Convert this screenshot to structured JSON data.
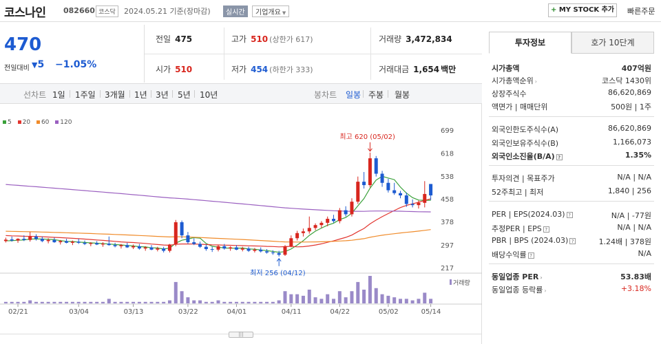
{
  "header": {
    "name": "코스나인",
    "code": "082660",
    "market": "코스닥",
    "date": "2024.05.21 기준(장마감)",
    "live": "실시간",
    "overview": "기업개요",
    "mystock": "MY STOCK 추가",
    "quick_order": "빠른주문"
  },
  "price": {
    "current": "470",
    "diff_label": "전일대비",
    "diff": "5",
    "rate": "−1.05%"
  },
  "quote": {
    "prev_label": "전일",
    "prev": "475",
    "high_label": "고가",
    "high": "510",
    "upper_limit": "(상한가 617)",
    "volume_label": "거래량",
    "volume": "3,472,834",
    "open_label": "시가",
    "open": "510",
    "low_label": "저가",
    "low": "454",
    "lower_limit": "(하한가 333)",
    "amount_label": "거래대금",
    "amount": "1,654",
    "amount_unit": "백만"
  },
  "periods": {
    "line_label": "선차트",
    "line_items": [
      "1일",
      "1주일",
      "3개월",
      "1년",
      "3년",
      "5년",
      "10년"
    ],
    "candle_label": "봉차트",
    "candle_items": [
      "일봉",
      "주봉",
      "월봉"
    ],
    "active_candle": "일봉"
  },
  "legend": [
    "5",
    "20",
    "60",
    "120"
  ],
  "legend_colors": [
    "#3aa13a",
    "#e2352f",
    "#f08b2a",
    "#9a5fc0"
  ],
  "up_color": "#d8261e",
  "down_color": "#1d5bd1",
  "volume_label": "거래량",
  "annotations": {
    "max_label": "최고 620 (05/02)",
    "min_label": "최저 256 (04/12)"
  },
  "chart_data": {
    "type": "candlestick",
    "y_ticks": [
      "699",
      "618",
      "538",
      "458",
      "378",
      "297",
      "217"
    ],
    "ylim": [
      217,
      699
    ],
    "x_ticks": [
      "02/21",
      "03/04",
      "03/13",
      "03/22",
      "04/01",
      "04/11",
      "04/22",
      "05/02",
      "05/14"
    ],
    "candles": [
      {
        "o": 310,
        "h": 322,
        "l": 305,
        "c": 315
      },
      {
        "o": 316,
        "h": 326,
        "l": 308,
        "c": 312
      },
      {
        "o": 312,
        "h": 320,
        "l": 304,
        "c": 318
      },
      {
        "o": 318,
        "h": 330,
        "l": 310,
        "c": 314
      },
      {
        "o": 314,
        "h": 342,
        "l": 308,
        "c": 326
      },
      {
        "o": 326,
        "h": 334,
        "l": 312,
        "c": 318
      },
      {
        "o": 318,
        "h": 326,
        "l": 306,
        "c": 310
      },
      {
        "o": 310,
        "h": 320,
        "l": 302,
        "c": 314
      },
      {
        "o": 314,
        "h": 322,
        "l": 304,
        "c": 306
      },
      {
        "o": 306,
        "h": 314,
        "l": 298,
        "c": 310
      },
      {
        "o": 310,
        "h": 318,
        "l": 302,
        "c": 304
      },
      {
        "o": 304,
        "h": 312,
        "l": 296,
        "c": 308
      },
      {
        "o": 308,
        "h": 318,
        "l": 300,
        "c": 304
      },
      {
        "o": 304,
        "h": 312,
        "l": 296,
        "c": 300
      },
      {
        "o": 300,
        "h": 306,
        "l": 292,
        "c": 303
      },
      {
        "o": 303,
        "h": 310,
        "l": 296,
        "c": 298
      },
      {
        "o": 298,
        "h": 306,
        "l": 290,
        "c": 301
      },
      {
        "o": 301,
        "h": 326,
        "l": 294,
        "c": 296
      },
      {
        "o": 296,
        "h": 304,
        "l": 288,
        "c": 292
      },
      {
        "o": 292,
        "h": 300,
        "l": 284,
        "c": 296
      },
      {
        "o": 296,
        "h": 304,
        "l": 286,
        "c": 288
      },
      {
        "o": 288,
        "h": 298,
        "l": 282,
        "c": 292
      },
      {
        "o": 292,
        "h": 300,
        "l": 280,
        "c": 284
      },
      {
        "o": 284,
        "h": 292,
        "l": 276,
        "c": 288
      },
      {
        "o": 288,
        "h": 296,
        "l": 278,
        "c": 280
      },
      {
        "o": 280,
        "h": 290,
        "l": 274,
        "c": 284
      },
      {
        "o": 284,
        "h": 290,
        "l": 270,
        "c": 276
      },
      {
        "o": 276,
        "h": 300,
        "l": 270,
        "c": 298
      },
      {
        "o": 298,
        "h": 384,
        "l": 292,
        "c": 376
      },
      {
        "o": 376,
        "h": 382,
        "l": 320,
        "c": 330
      },
      {
        "o": 330,
        "h": 342,
        "l": 300,
        "c": 306
      },
      {
        "o": 306,
        "h": 320,
        "l": 296,
        "c": 300
      },
      {
        "o": 300,
        "h": 308,
        "l": 286,
        "c": 290
      },
      {
        "o": 290,
        "h": 298,
        "l": 276,
        "c": 282
      },
      {
        "o": 282,
        "h": 290,
        "l": 272,
        "c": 280
      },
      {
        "o": 280,
        "h": 296,
        "l": 274,
        "c": 292
      },
      {
        "o": 292,
        "h": 300,
        "l": 280,
        "c": 284
      },
      {
        "o": 284,
        "h": 292,
        "l": 276,
        "c": 288
      },
      {
        "o": 288,
        "h": 296,
        "l": 278,
        "c": 280
      },
      {
        "o": 280,
        "h": 290,
        "l": 274,
        "c": 284
      },
      {
        "o": 284,
        "h": 290,
        "l": 272,
        "c": 276
      },
      {
        "o": 276,
        "h": 286,
        "l": 270,
        "c": 280
      },
      {
        "o": 280,
        "h": 288,
        "l": 270,
        "c": 274
      },
      {
        "o": 274,
        "h": 282,
        "l": 266,
        "c": 270
      },
      {
        "o": 270,
        "h": 278,
        "l": 262,
        "c": 268
      },
      {
        "o": 268,
        "h": 276,
        "l": 256,
        "c": 262
      },
      {
        "o": 262,
        "h": 296,
        "l": 258,
        "c": 292
      },
      {
        "o": 292,
        "h": 330,
        "l": 288,
        "c": 320
      },
      {
        "o": 320,
        "h": 346,
        "l": 312,
        "c": 338
      },
      {
        "o": 338,
        "h": 354,
        "l": 326,
        "c": 344
      },
      {
        "o": 344,
        "h": 396,
        "l": 336,
        "c": 356
      },
      {
        "o": 356,
        "h": 372,
        "l": 348,
        "c": 366
      },
      {
        "o": 366,
        "h": 380,
        "l": 356,
        "c": 374
      },
      {
        "o": 374,
        "h": 396,
        "l": 362,
        "c": 388
      },
      {
        "o": 388,
        "h": 402,
        "l": 374,
        "c": 380
      },
      {
        "o": 380,
        "h": 426,
        "l": 372,
        "c": 418
      },
      {
        "o": 418,
        "h": 432,
        "l": 396,
        "c": 404
      },
      {
        "o": 404,
        "h": 460,
        "l": 396,
        "c": 448
      },
      {
        "o": 448,
        "h": 536,
        "l": 440,
        "c": 518
      },
      {
        "o": 518,
        "h": 552,
        "l": 494,
        "c": 506
      },
      {
        "o": 506,
        "h": 620,
        "l": 498,
        "c": 600
      },
      {
        "o": 600,
        "h": 608,
        "l": 536,
        "c": 546
      },
      {
        "o": 546,
        "h": 556,
        "l": 500,
        "c": 514
      },
      {
        "o": 514,
        "h": 528,
        "l": 480,
        "c": 488
      },
      {
        "o": 488,
        "h": 514,
        "l": 472,
        "c": 478
      },
      {
        "o": 478,
        "h": 486,
        "l": 460,
        "c": 470
      },
      {
        "o": 470,
        "h": 480,
        "l": 430,
        "c": 440
      },
      {
        "o": 440,
        "h": 456,
        "l": 428,
        "c": 436
      },
      {
        "o": 436,
        "h": 452,
        "l": 424,
        "c": 444
      },
      {
        "o": 444,
        "h": 520,
        "l": 428,
        "c": 475
      },
      {
        "o": 510,
        "h": 510,
        "l": 454,
        "c": 470
      }
    ],
    "volumes": [
      1,
      1,
      1,
      1,
      2,
      1,
      1,
      1,
      1,
      1,
      1,
      1,
      1,
      1,
      1,
      1,
      1,
      3,
      1,
      1,
      1,
      1,
      1,
      1,
      1,
      1,
      1,
      2,
      14,
      8,
      4,
      2,
      2,
      1,
      1,
      2,
      1,
      1,
      1,
      1,
      1,
      1,
      1,
      1,
      1,
      2,
      8,
      6,
      6,
      5,
      9,
      4,
      3,
      6,
      3,
      8,
      4,
      8,
      14,
      9,
      18,
      10,
      6,
      5,
      4,
      3,
      3,
      2,
      3,
      7,
      3
    ]
  }
}
